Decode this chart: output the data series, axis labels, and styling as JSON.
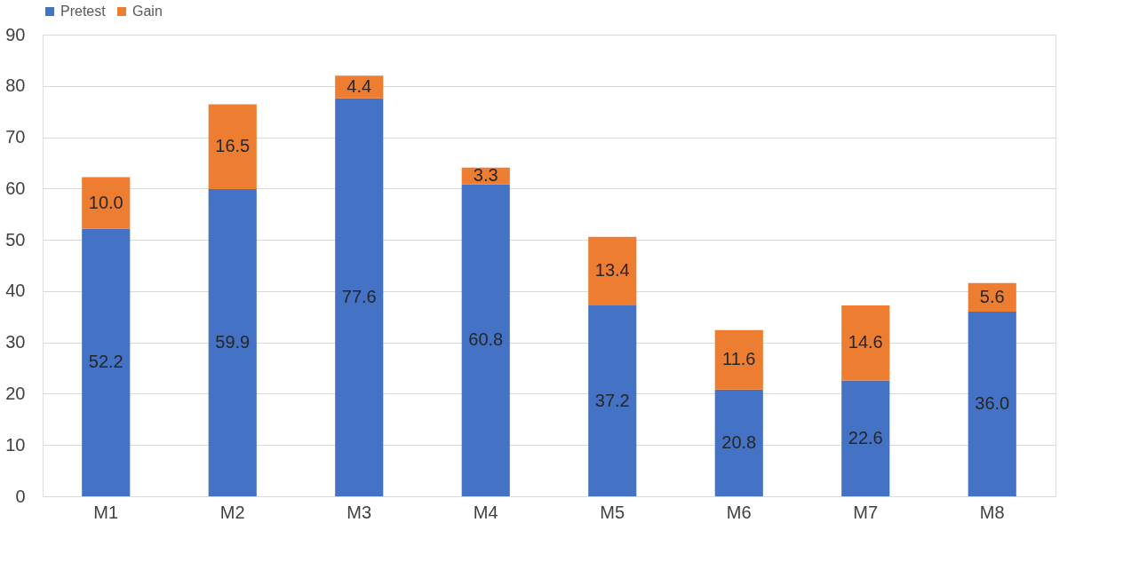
{
  "chart_data": {
    "type": "bar",
    "stacked": true,
    "categories": [
      "M1",
      "M2",
      "M3",
      "M4",
      "M5",
      "M6",
      "M7",
      "M8"
    ],
    "series": [
      {
        "name": "Pretest",
        "color": "#4472c4",
        "values": [
          52.2,
          59.9,
          77.6,
          60.8,
          37.2,
          20.8,
          22.6,
          36.0
        ],
        "value_labels": [
          "52.2",
          "59.9",
          "77.6",
          "60.8",
          "37.2",
          "20.8",
          "22.6",
          "36.0"
        ]
      },
      {
        "name": "Gain",
        "color": "#ed7d31",
        "values": [
          10.0,
          16.5,
          4.4,
          3.3,
          13.4,
          11.6,
          14.6,
          5.6
        ],
        "value_labels": [
          "10.0",
          "16.5",
          "4.4",
          "3.3",
          "13.4",
          "11.6",
          "14.6",
          "5.6"
        ]
      }
    ],
    "ylim": [
      0,
      90
    ],
    "yticks": [
      0,
      10,
      20,
      30,
      40,
      50,
      60,
      70,
      80,
      90
    ],
    "grid": "y",
    "legend": "top"
  }
}
